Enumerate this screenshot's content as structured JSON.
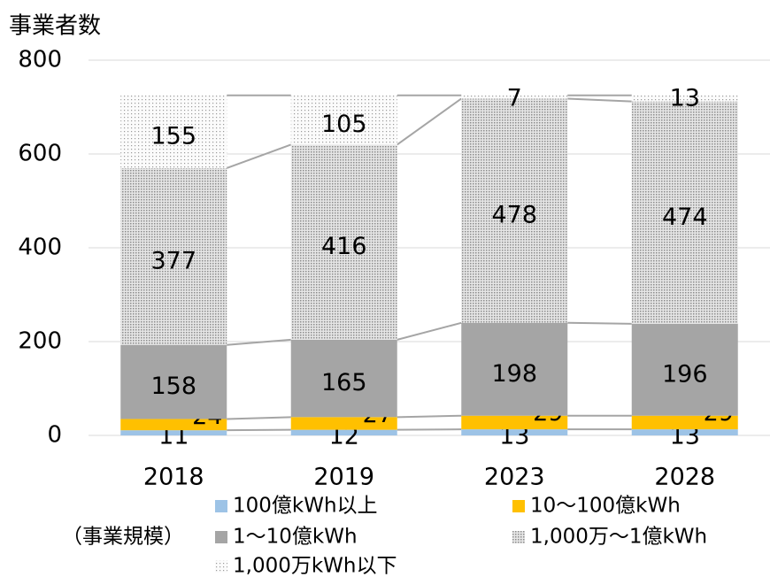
{
  "chart_data": {
    "type": "stacked_bar",
    "y_title": "事業者数",
    "categories": [
      "2018",
      "2019",
      "2023",
      "2028"
    ],
    "series": [
      {
        "name": "100億kWh以上",
        "color": "#9dc3e6",
        "values": [
          11,
          12,
          13,
          13
        ]
      },
      {
        "name": "10～100億kWh",
        "color": "#ffc000",
        "values": [
          24,
          27,
          29,
          29
        ]
      },
      {
        "name": "1～10億kWh",
        "color": "#a5a5a5",
        "values": [
          158,
          165,
          198,
          196
        ]
      },
      {
        "name": "1,000万～1億kWh",
        "color": "#a5a5a5",
        "pattern": "dense-dots",
        "values": [
          377,
          416,
          478,
          474
        ]
      },
      {
        "name": "1,000万kWh以下",
        "color": "#a5a5a5",
        "pattern": "sparse-dots",
        "values": [
          155,
          105,
          7,
          13
        ]
      }
    ],
    "legend_title": "（事業規模）",
    "ylim": [
      0,
      800
    ],
    "yticks": [
      0,
      200,
      400,
      600,
      800
    ],
    "grid": true
  }
}
